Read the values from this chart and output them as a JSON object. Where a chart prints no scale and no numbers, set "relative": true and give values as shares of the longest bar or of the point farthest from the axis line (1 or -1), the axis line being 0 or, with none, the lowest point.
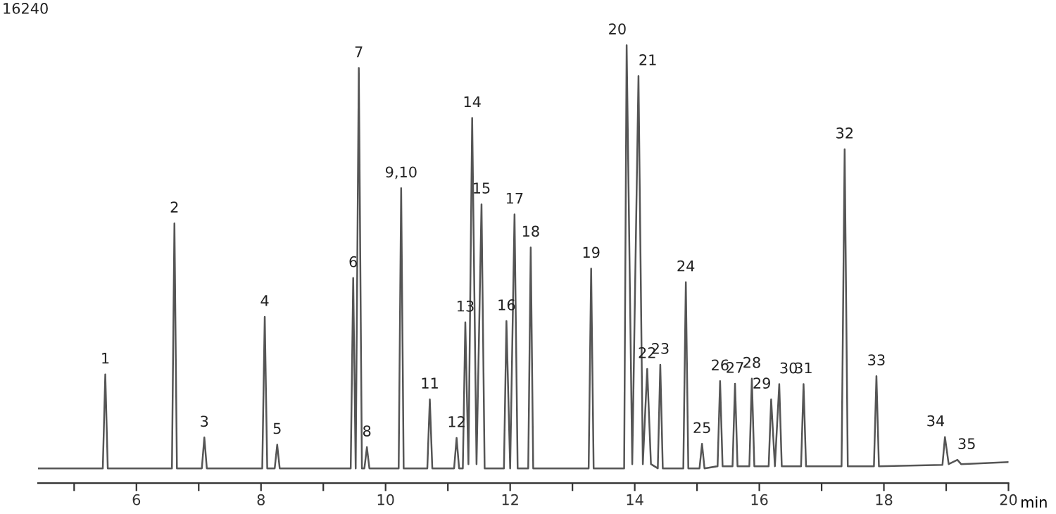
{
  "chart_data": {
    "type": "line",
    "relative": true,
    "xlabel": "min",
    "color": "#555555",
    "marker": "none",
    "line_style": "solid",
    "grid": false,
    "legend": false,
    "tick_labels": "x",
    "xlim": [
      4.42,
      20
    ],
    "xticks": [
      {
        "value": 5,
        "label": null
      },
      6,
      {
        "value": 7,
        "label": null
      },
      8,
      {
        "value": 9,
        "label": null
      },
      10,
      {
        "value": 11,
        "label": null
      },
      12,
      {
        "value": 13,
        "label": null
      },
      14,
      {
        "value": 15,
        "label": null
      },
      16,
      {
        "value": 17,
        "label": null
      },
      18,
      {
        "value": 19,
        "label": null
      },
      20
    ],
    "x": [
      4.42,
      5.46,
      5.5,
      5.54,
      6.57,
      6.61,
      6.65,
      7.05,
      7.09,
      7.13,
      8.02,
      8.06,
      8.1,
      8.22,
      8.26,
      8.3,
      9.44,
      9.48,
      9.52,
      9.57,
      9.62,
      9.66,
      9.7,
      9.74,
      10.21,
      10.25,
      10.29,
      10.67,
      10.71,
      10.75,
      11.1,
      11.14,
      11.18,
      11.24,
      11.28,
      11.33,
      11.39,
      11.46,
      11.54,
      11.59,
      11.9,
      11.94,
      12.0,
      12.07,
      12.12,
      12.29,
      12.33,
      12.37,
      13.26,
      13.3,
      13.34,
      13.83,
      13.87,
      13.96,
      14.06,
      14.13,
      14.2,
      14.26,
      14.37,
      14.41,
      14.45,
      14.78,
      14.82,
      14.86,
      15.04,
      15.08,
      15.12,
      15.33,
      15.37,
      15.41,
      15.57,
      15.61,
      15.65,
      15.84,
      15.88,
      15.92,
      16.15,
      16.19,
      16.25,
      16.32,
      16.36,
      16.67,
      16.71,
      16.75,
      17.32,
      17.37,
      17.42,
      17.84,
      17.88,
      17.92,
      18.94,
      18.98,
      19.04,
      19.18,
      19.24,
      20.0
    ],
    "values": [
      0,
      0,
      0.222,
      0,
      0,
      0.579,
      0,
      0,
      0.073,
      0,
      0,
      0.358,
      0,
      0,
      0.056,
      0,
      0,
      0.45,
      0,
      0.946,
      0,
      0,
      0.05,
      0,
      0,
      0.662,
      0,
      0,
      0.163,
      0,
      0,
      0.072,
      0,
      0,
      0.345,
      0.01,
      0.828,
      0.01,
      0.624,
      0,
      0,
      0.348,
      0,
      0.6,
      0,
      0,
      0.522,
      0,
      0,
      0.472,
      0,
      0,
      1,
      0.01,
      0.927,
      0.01,
      0.235,
      0.01,
      0,
      0.245,
      0,
      0,
      0.44,
      0,
      0,
      0.058,
      0,
      0.005,
      0.206,
      0.005,
      0.005,
      0.2,
      0.005,
      0.005,
      0.212,
      0.005,
      0.005,
      0.163,
      0.005,
      0.199,
      0.005,
      0.005,
      0.199,
      0.005,
      0.005,
      0.754,
      0.005,
      0.005,
      0.218,
      0.005,
      0.008,
      0.074,
      0.01,
      0.02,
      0.01,
      0.015
    ],
    "annotations": [
      {
        "text": "1",
        "x": 5.5,
        "y": 0.222
      },
      {
        "text": "2",
        "x": 6.61,
        "y": 0.579
      },
      {
        "text": "3",
        "x": 7.09,
        "y": 0.073
      },
      {
        "text": "4",
        "x": 8.06,
        "y": 0.358
      },
      {
        "text": "5",
        "x": 8.26,
        "y": 0.056
      },
      {
        "text": "6",
        "x": 9.48,
        "y": 0.45
      },
      {
        "text": "7",
        "x": 9.57,
        "y": 0.946
      },
      {
        "text": "8",
        "x": 9.7,
        "y": 0.05
      },
      {
        "text": "9,10",
        "x": 10.25,
        "y": 0.662
      },
      {
        "text": "11",
        "x": 10.71,
        "y": 0.163
      },
      {
        "text": "12",
        "x": 11.14,
        "y": 0.072
      },
      {
        "text": "13",
        "x": 11.28,
        "y": 0.345
      },
      {
        "text": "14",
        "x": 11.39,
        "y": 0.828
      },
      {
        "text": "15",
        "x": 11.54,
        "y": 0.624
      },
      {
        "text": "16",
        "x": 11.94,
        "y": 0.348
      },
      {
        "text": "17",
        "x": 12.07,
        "y": 0.6
      },
      {
        "text": "18",
        "x": 12.33,
        "y": 0.522
      },
      {
        "text": "19",
        "x": 13.3,
        "y": 0.472
      },
      {
        "text": "20",
        "x": 13.87,
        "y": 1
      },
      {
        "text": "21",
        "x": 14.06,
        "y": 0.927
      },
      {
        "text": "22",
        "x": 14.2,
        "y": 0.235
      },
      {
        "text": "23",
        "x": 14.41,
        "y": 0.245
      },
      {
        "text": "24",
        "x": 14.82,
        "y": 0.44
      },
      {
        "text": "25",
        "x": 15.08,
        "y": 0.058
      },
      {
        "text": "26",
        "x": 15.37,
        "y": 0.206
      },
      {
        "text": "27",
        "x": 15.61,
        "y": 0.2
      },
      {
        "text": "28",
        "x": 15.88,
        "y": 0.212
      },
      {
        "text": "29",
        "x": 16.19,
        "y": 0.163
      },
      {
        "text": "30",
        "x": 16.32,
        "y": 0.199
      },
      {
        "text": "31",
        "x": 16.71,
        "y": 0.199
      },
      {
        "text": "32",
        "x": 17.37,
        "y": 0.754
      },
      {
        "text": "33",
        "x": 17.88,
        "y": 0.218
      },
      {
        "text": "34",
        "x": 18.98,
        "y": 0.074
      },
      {
        "text": "35",
        "x": 19.18,
        "y": 0.02
      },
      "16240"
    ]
  }
}
